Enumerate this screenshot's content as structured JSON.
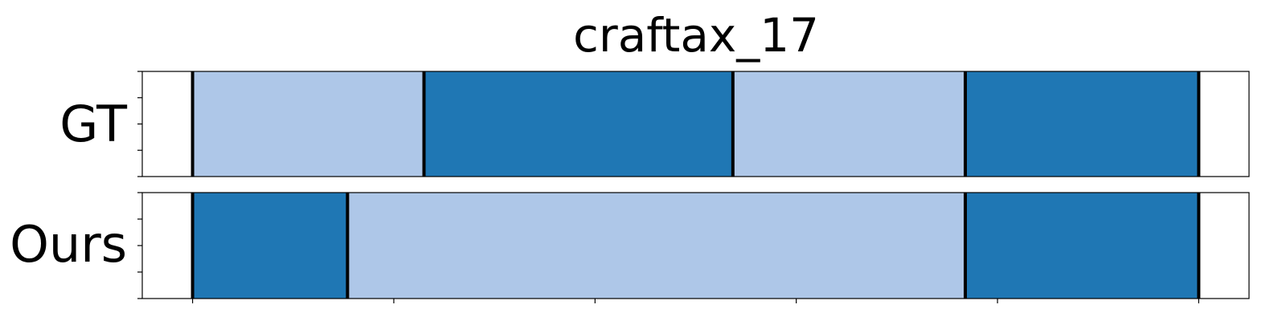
{
  "chart_data": {
    "type": "segmentation-timeline",
    "title": "craftax_17",
    "xlim": [
      0,
      1.1
    ],
    "colors": {
      "light": "#aec7e8",
      "dark": "#1f77b4",
      "boundary": "#000000"
    },
    "rows": [
      {
        "label": "GT",
        "segments": [
          {
            "start": 0.0,
            "end": 0.23,
            "color": "light"
          },
          {
            "start": 0.23,
            "end": 0.537,
            "color": "dark"
          },
          {
            "start": 0.537,
            "end": 0.768,
            "color": "light"
          },
          {
            "start": 0.768,
            "end": 1.0,
            "color": "dark"
          }
        ],
        "boundaries": [
          0.0,
          0.23,
          0.537,
          0.768,
          1.0
        ]
      },
      {
        "label": "Ours",
        "segments": [
          {
            "start": 0.0,
            "end": 0.154,
            "color": "dark"
          },
          {
            "start": 0.154,
            "end": 0.768,
            "color": "light"
          },
          {
            "start": 0.768,
            "end": 1.0,
            "color": "dark"
          }
        ],
        "boundaries": [
          0.0,
          0.154,
          0.768,
          1.0
        ]
      }
    ],
    "xticks": [
      0.0,
      0.2,
      0.4,
      0.6,
      0.8,
      1.0
    ],
    "yticks_per_row": 5,
    "tick_labels_shown": false,
    "grid": false,
    "legend": "none"
  }
}
